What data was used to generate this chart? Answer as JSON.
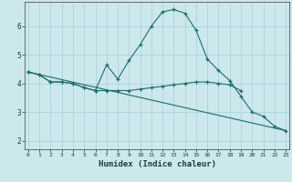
{
  "xlabel": "Humidex (Indice chaleur)",
  "background_color": "#cce8ec",
  "grid_color": "#aad4da",
  "line_color": "#1a6e68",
  "x_ticks": [
    0,
    1,
    2,
    3,
    4,
    5,
    6,
    7,
    8,
    9,
    10,
    11,
    12,
    13,
    14,
    15,
    16,
    17,
    18,
    19,
    20,
    21,
    22,
    23
  ],
  "y_ticks": [
    2,
    3,
    4,
    5,
    6
  ],
  "ylim": [
    1.7,
    6.85
  ],
  "xlim": [
    -0.3,
    23.3
  ],
  "curve1_x": [
    0,
    1,
    2,
    3,
    4,
    5,
    6,
    7,
    8,
    9,
    10,
    11,
    12,
    13,
    14,
    15,
    16,
    17,
    18,
    19
  ],
  "curve1_y": [
    4.4,
    4.3,
    4.05,
    4.05,
    4.0,
    3.85,
    3.75,
    3.75,
    3.75,
    3.75,
    3.8,
    3.85,
    3.9,
    3.95,
    4.0,
    4.05,
    4.05,
    4.0,
    3.95,
    3.75
  ],
  "curve2_x": [
    0,
    1,
    2,
    3,
    4,
    5,
    6,
    7,
    8,
    9,
    10,
    11,
    12,
    13,
    14,
    15,
    16,
    17,
    18,
    19,
    20,
    21,
    22,
    23
  ],
  "curve2_y": [
    4.4,
    4.3,
    4.05,
    4.05,
    4.0,
    3.85,
    3.75,
    4.65,
    4.15,
    4.8,
    5.35,
    6.0,
    6.5,
    6.58,
    6.45,
    5.85,
    4.85,
    4.45,
    4.1,
    3.55,
    3.0,
    2.85,
    2.5,
    2.35
  ],
  "curve3_x": [
    0,
    23
  ],
  "curve3_y": [
    4.4,
    2.35
  ]
}
